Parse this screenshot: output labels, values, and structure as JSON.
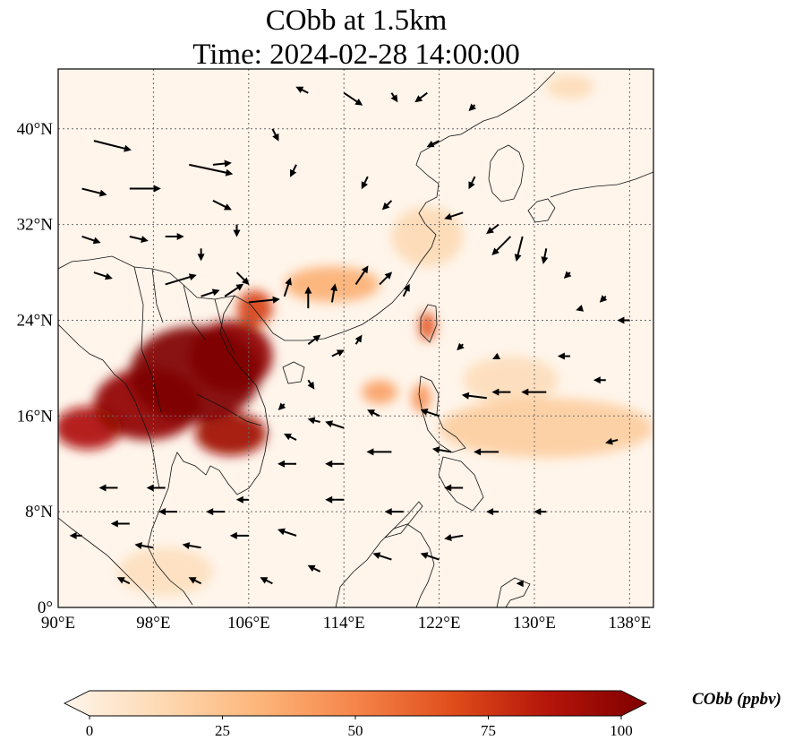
{
  "title": {
    "line1": "CObb at 1.5km",
    "line2": "Time: 2024-02-28 14:00:00"
  },
  "map": {
    "extent": {
      "lon_min": 90,
      "lon_max": 140,
      "lat_min": 0,
      "lat_max": 45
    },
    "lon_ticks": [
      {
        "value": 90,
        "label": "90°E"
      },
      {
        "value": 98,
        "label": "98°E"
      },
      {
        "value": 106,
        "label": "106°E"
      },
      {
        "value": 114,
        "label": "114°E"
      },
      {
        "value": 122,
        "label": "122°E"
      },
      {
        "value": 130,
        "label": "130°E"
      },
      {
        "value": 138,
        "label": "138°E"
      }
    ],
    "lat_ticks": [
      {
        "value": 0,
        "label": "0°"
      },
      {
        "value": 8,
        "label": "8°N"
      },
      {
        "value": 16,
        "label": "16°N"
      },
      {
        "value": 24,
        "label": "24°N"
      },
      {
        "value": 32,
        "label": "32°N"
      },
      {
        "value": 40,
        "label": "40°N"
      }
    ],
    "background_color": "#fff5eb",
    "plumes": [
      {
        "name": "Indochina core",
        "lon": 101.5,
        "lat": 19.5,
        "rlon": 5.5,
        "rlat": 4.0,
        "value": 100
      },
      {
        "name": "Myanmar-Thailand",
        "lon": 97.5,
        "lat": 17.0,
        "rlon": 4.5,
        "rlat": 3.0,
        "value": 95
      },
      {
        "name": "Laos-Vietnam",
        "lon": 104.5,
        "lat": 21.0,
        "rlon": 3.5,
        "rlat": 3.0,
        "value": 95
      },
      {
        "name": "Bay of Bengal edge",
        "lon": 92.5,
        "lat": 15.0,
        "rlon": 2.8,
        "rlat": 1.8,
        "value": 85
      },
      {
        "name": "Cambodia",
        "lon": 104.5,
        "lat": 14.5,
        "rlon": 3.0,
        "rlat": 1.8,
        "value": 90
      },
      {
        "name": "Guangxi",
        "lon": 106.5,
        "lat": 25.0,
        "rlon": 1.5,
        "rlat": 1.5,
        "value": 70
      },
      {
        "name": "South China band",
        "lon": 113.0,
        "lat": 27.0,
        "rlon": 4.0,
        "rlat": 1.5,
        "value": 35
      },
      {
        "name": "Taiwan",
        "lon": 121.0,
        "lat": 23.5,
        "rlon": 0.7,
        "rlat": 1.2,
        "value": 65
      },
      {
        "name": "Luzon",
        "lon": 120.5,
        "lat": 17.5,
        "rlon": 0.8,
        "rlat": 1.2,
        "value": 45
      },
      {
        "name": "South China Sea patch",
        "lon": 117.0,
        "lat": 18.0,
        "rlon": 1.5,
        "rlat": 1.0,
        "value": 40
      },
      {
        "name": "Western Pacific band",
        "lon": 131.0,
        "lat": 15.0,
        "rlon": 9.0,
        "rlat": 2.5,
        "value": 22
      },
      {
        "name": "Western Pacific band 2",
        "lon": 128.0,
        "lat": 19.0,
        "rlon": 4.0,
        "rlat": 2.0,
        "value": 14
      },
      {
        "name": "Korea east",
        "lon": 133.0,
        "lat": 43.5,
        "rlon": 2.0,
        "rlat": 1.0,
        "value": 15
      },
      {
        "name": "East China coast",
        "lon": 121.0,
        "lat": 31.0,
        "rlon": 3.0,
        "rlat": 2.5,
        "value": 16
      },
      {
        "name": "Sumatra",
        "lon": 99.0,
        "lat": 3.0,
        "rlon": 4.0,
        "rlat": 2.0,
        "value": 13
      }
    ],
    "wind_vectors": [
      [
        93,
        39,
        6,
        -1.5
      ],
      [
        92,
        35,
        4,
        -1
      ],
      [
        96,
        35,
        5,
        0
      ],
      [
        101,
        37,
        7,
        -1.5
      ],
      [
        103,
        37,
        3,
        0.3
      ],
      [
        103,
        34,
        3,
        -1.5
      ],
      [
        92,
        31,
        3,
        -1
      ],
      [
        96,
        31,
        3,
        -0.7
      ],
      [
        93,
        28,
        3,
        -1
      ],
      [
        99,
        27,
        5,
        1.5
      ],
      [
        99,
        31,
        3,
        0
      ],
      [
        105,
        32,
        0,
        -2
      ],
      [
        102,
        30,
        0,
        -2
      ],
      [
        105,
        28,
        2,
        -2
      ],
      [
        106,
        25.5,
        5,
        0.5
      ],
      [
        102,
        26,
        3,
        1
      ],
      [
        104,
        26,
        3,
        2
      ],
      [
        109,
        26,
        1,
        3
      ],
      [
        111,
        25,
        0,
        3.5
      ],
      [
        113,
        25.5,
        0.5,
        3
      ],
      [
        115,
        27,
        2,
        3
      ],
      [
        117,
        27,
        2,
        2
      ],
      [
        119,
        26,
        1,
        2
      ],
      [
        111,
        22,
        2,
        1.5
      ],
      [
        113,
        21,
        2,
        1
      ],
      [
        115,
        22,
        1,
        1.5
      ],
      [
        111,
        19,
        1,
        -1.5
      ],
      [
        109,
        17,
        -1,
        -1
      ],
      [
        108,
        40,
        1,
        -2
      ],
      [
        111,
        43,
        -2,
        1
      ],
      [
        114,
        43,
        3,
        -2
      ],
      [
        118,
        43,
        1,
        -1.5
      ],
      [
        121,
        43,
        -2,
        -1.5
      ],
      [
        125,
        42,
        -1,
        -1
      ],
      [
        122,
        39,
        -2,
        -1
      ],
      [
        110,
        37,
        -1,
        -2
      ],
      [
        116,
        36,
        -1,
        -2
      ],
      [
        118,
        34,
        -1.5,
        -1.5
      ],
      [
        125,
        36,
        -1,
        -2
      ],
      [
        127,
        32,
        -2,
        -1.5
      ],
      [
        124,
        33,
        -3,
        -1
      ],
      [
        128,
        31,
        -3,
        -3
      ],
      [
        129,
        31,
        -1,
        -4
      ],
      [
        131,
        30,
        -0.5,
        -2.5
      ],
      [
        133,
        28,
        -1,
        -1
      ],
      [
        136,
        26,
        -1,
        -1
      ],
      [
        134,
        25,
        -1,
        -0.3
      ],
      [
        138,
        24,
        -2,
        0
      ],
      [
        124,
        22,
        -1,
        -1
      ],
      [
        127,
        21,
        -1,
        -0.5
      ],
      [
        133,
        21,
        -2,
        0
      ],
      [
        136,
        19,
        -2,
        0
      ],
      [
        131,
        18,
        -4,
        0
      ],
      [
        128,
        18,
        -3,
        0
      ],
      [
        126,
        17.5,
        -4,
        0.5
      ],
      [
        122,
        16,
        -3,
        1
      ],
      [
        117,
        16,
        -2,
        1
      ],
      [
        114,
        15,
        -3,
        1
      ],
      [
        112,
        15.5,
        -2,
        0.5
      ],
      [
        110,
        14,
        -2,
        1
      ],
      [
        118,
        13,
        -4,
        0
      ],
      [
        114,
        12,
        -3,
        0
      ],
      [
        110,
        12,
        -3,
        0
      ],
      [
        106,
        9,
        -2,
        0
      ],
      [
        104,
        8,
        -3,
        0
      ],
      [
        100,
        8,
        -3,
        0
      ],
      [
        96,
        7,
        -3,
        0
      ],
      [
        92,
        6,
        -2,
        0
      ],
      [
        99,
        10,
        -3,
        0
      ],
      [
        95,
        10,
        -3,
        0
      ],
      [
        114,
        9,
        -3,
        0
      ],
      [
        119,
        8,
        -3,
        0
      ],
      [
        124,
        10,
        -3,
        0
      ],
      [
        127,
        8,
        -2,
        0
      ],
      [
        124,
        6,
        -3,
        -0.5
      ],
      [
        110,
        6,
        -3,
        1
      ],
      [
        106,
        6,
        -3,
        0
      ],
      [
        102,
        5,
        -3,
        0.5
      ],
      [
        98,
        5,
        -3,
        0.5
      ],
      [
        112,
        3,
        -2,
        1
      ],
      [
        118,
        4,
        -3,
        1
      ],
      [
        122,
        4,
        -3,
        1
      ],
      [
        108,
        2,
        -2,
        1
      ],
      [
        102,
        2,
        -2,
        1
      ],
      [
        96,
        2,
        -2,
        1
      ],
      [
        137,
        14,
        -2,
        -0.5
      ],
      [
        131,
        8,
        -2,
        0
      ],
      [
        129,
        2,
        -1,
        0
      ],
      [
        123,
        13,
        -3,
        0.5
      ],
      [
        127,
        13,
        -4,
        0
      ]
    ]
  },
  "colorbar": {
    "label": "CObb (ppbv)",
    "min": 0,
    "max": 100,
    "ticks": [
      "0",
      "25",
      "50",
      "75",
      "100"
    ],
    "colors": [
      "#fff5eb",
      "#fdd9b3",
      "#fdb67a",
      "#f5854a",
      "#e04d1b",
      "#b4140a",
      "#7f0000"
    ]
  }
}
